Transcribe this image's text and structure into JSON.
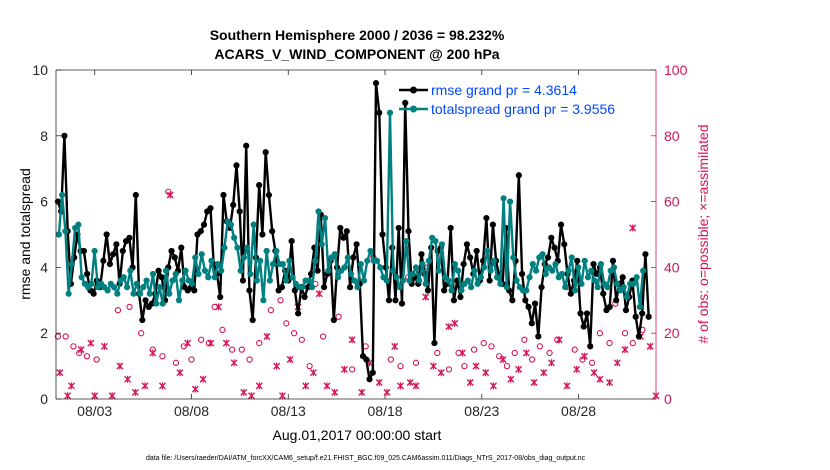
{
  "chart_data": {
    "type": "line",
    "title": "Southern Hemisphere 2000 / 2036 = 98.232%",
    "subtitle": "ACARS_V_WIND_COMPONENT @ 200 hPa",
    "xlabel": "Aug.01,2017 00:00:00 start",
    "ylabel": "rmse and totalspread",
    "y2label": "# of obs: o=possible; ×=assimilated",
    "xlim": [
      1,
      32
    ],
    "ylim": [
      0,
      10
    ],
    "y2lim": [
      0,
      100
    ],
    "x_ticks": [
      3,
      8,
      13,
      18,
      23,
      28
    ],
    "x_tick_labels": [
      "08/03",
      "08/08",
      "08/13",
      "08/18",
      "08/23",
      "08/28"
    ],
    "y_tick_labels": [
      "0",
      "2",
      "4",
      "6",
      "8",
      "10"
    ],
    "y2_tick_labels": [
      "0",
      "20",
      "40",
      "60",
      "80",
      "100"
    ],
    "legend_position": "top-right",
    "footnote": "data file: /Users/raeder/DAI/ATM_forcXX/CAM6_setup/f.e21.FHIST_BGC.f09_025.CAM6assim.011/Diags_NTrS_2017-08/obs_diag_output.nc",
    "colors": {
      "rmse": "#000000",
      "spread": "#008080",
      "obs": "#d6145a"
    },
    "series": [
      {
        "name": "rmse grand pr = 4.3614",
        "y": [
          6.0,
          5.7,
          8.0,
          5.1,
          3.5,
          4.3,
          5.0,
          4.5,
          4.5,
          3.8,
          3.3,
          3.2,
          3.6,
          3.4,
          4.2,
          5.0,
          4.1,
          4.4,
          4.7,
          3.5,
          4.5,
          4.8,
          4.9,
          4.0,
          6.2,
          3.2,
          2.4,
          3.0,
          2.8,
          2.9,
          3.2,
          3.9,
          3.7,
          3.0,
          4.0,
          4.5,
          4.3,
          3.9,
          4.6,
          3.4,
          3.3,
          3.4,
          3.3,
          5.0,
          5.1,
          5.3,
          5.7,
          5.8,
          4.1,
          3.8,
          3.1,
          6.2,
          5.4,
          5.2,
          5.9,
          7.1,
          5.7,
          3.6,
          7.7,
          3.3,
          2.4,
          4.3,
          6.5,
          5.0,
          7.5,
          6.2,
          5.1,
          4.5,
          3.3,
          3.4,
          3.9,
          3.6,
          4.8,
          3.3,
          2.6,
          3.4,
          3.1,
          3.4,
          3.8,
          4.6,
          3.9,
          5.6,
          3.4,
          3.8,
          4.2,
          2.4,
          4.0,
          5.2,
          4.9,
          5.1,
          3.4,
          4.3,
          4.7,
          3.5,
          1.3,
          1.2,
          0.6,
          0.8,
          9.6,
          8.7,
          5.0,
          4.0,
          3.0,
          4.6,
          3.0,
          5.2,
          2.9,
          9.0,
          5.1,
          3.5,
          3.7,
          3.5,
          4.4,
          3.8,
          3.3,
          4.6,
          1.7,
          4.5,
          4.6,
          3.3,
          3.5,
          5.2,
          3.0,
          3.6,
          3.1,
          4.1,
          4.7,
          4.3,
          3.8,
          4.5,
          3.6,
          4.2,
          5.5,
          3.6,
          5.3,
          4.2,
          3.7,
          3.5,
          5.2,
          3.3,
          3.0,
          4.2,
          6.8,
          3.8,
          3.0,
          2.8,
          2.3,
          2.9,
          1.9,
          3.4,
          4.1,
          4.3,
          4.9,
          4.6,
          4.2,
          5.3,
          4.7,
          3.8,
          3.2,
          3.6,
          4.2,
          2.6,
          2.2,
          2.6,
          1.6,
          4.1,
          3.8,
          4.0,
          3.2,
          2.7,
          2.8,
          4.2,
          3.0,
          3.5,
          3.7,
          2.7,
          3.1,
          3.6,
          2.5,
          1.9,
          2.6,
          4.4,
          2.5
        ],
        "x_start": 1.1,
        "x_step": 0.1677
      },
      {
        "name": "totalspread grand pr = 3.9556",
        "y": [
          5.0,
          6.2,
          5.1,
          3.2,
          4.1,
          5.2,
          5.3,
          3.7,
          3.5,
          3.4,
          3.5,
          4.5,
          3.4,
          3.5,
          3.4,
          3.3,
          3.5,
          3.4,
          3.2,
          3.6,
          3.7,
          3.4,
          3.9,
          3.2,
          3.5,
          3.2,
          3.4,
          3.6,
          3.2,
          3.8,
          2.9,
          3.4,
          2.9,
          3.9,
          3.2,
          3.6,
          3.8,
          3.0,
          3.6,
          3.9,
          3.6,
          3.5,
          4.3,
          3.8,
          4.4,
          3.9,
          3.7,
          4.2,
          3.7,
          4.1,
          3.9,
          4.6,
          5.4,
          5.3,
          4.9,
          4.6,
          3.9,
          4.3,
          4.6,
          3.8,
          5.3,
          3.6,
          4.2,
          3.0,
          4.5,
          3.6,
          4.1,
          4.5,
          4.1,
          4.1,
          3.6,
          4.2,
          3.7,
          3.5,
          3.4,
          3.4,
          3.6,
          3.6,
          3.4,
          4.2,
          5.7,
          4.7,
          5.5,
          3.9,
          4.3,
          4.4,
          3.7,
          3.9,
          4.0,
          4.3,
          3.8,
          3.6,
          3.4,
          4.1,
          3.6,
          4.2,
          4.5,
          4.2,
          4.2,
          4.0,
          3.7,
          3.6,
          8.7,
          3.9,
          3.7,
          3.4,
          3.6,
          4.8,
          3.6,
          3.8,
          4.0,
          3.6,
          4.1,
          3.5,
          4.2,
          4.9,
          4.8,
          3.9,
          4.7,
          3.7,
          3.6,
          3.3,
          4.1,
          3.9,
          3.3,
          3.5,
          3.6,
          3.4,
          3.9,
          3.5,
          3.7,
          4.0,
          4.5,
          3.9,
          4.2,
          3.7,
          3.5,
          6.1,
          3.4,
          6.0,
          4.3,
          3.6,
          3.4,
          3.3,
          3.3,
          3.7,
          4.1,
          3.9,
          4.3,
          4.4,
          3.8,
          4.0,
          3.9,
          4.1,
          3.7,
          3.8,
          3.4,
          3.9,
          4.3,
          3.3,
          4.0,
          3.5,
          4.2,
          3.7,
          3.9,
          3.6,
          3.4,
          4.1,
          3.5,
          3.4,
          3.9,
          4.0,
          3.5,
          3.3,
          3.4,
          3.1,
          3.5,
          3.5,
          3.7,
          2.8,
          3.9
        ],
        "x_start": 1.15,
        "x_step": 0.1677
      },
      {
        "name": "possible obs",
        "axis": "right",
        "marker": "o",
        "points": [
          [
            1.1,
            19
          ],
          [
            1.5,
            19
          ],
          [
            1.9,
            16
          ],
          [
            2.2,
            14
          ],
          [
            2.6,
            13
          ],
          [
            3.1,
            12
          ],
          [
            4.2,
            27
          ],
          [
            4.8,
            28
          ],
          [
            5.4,
            20
          ],
          [
            6.0,
            15
          ],
          [
            6.5,
            13
          ],
          [
            6.8,
            63
          ],
          [
            7.2,
            11
          ],
          [
            7.6,
            16
          ],
          [
            8.0,
            12
          ],
          [
            8.5,
            18
          ],
          [
            8.9,
            17
          ],
          [
            9.2,
            28
          ],
          [
            9.6,
            21
          ],
          [
            10.1,
            15
          ],
          [
            10.6,
            15
          ],
          [
            11.0,
            12
          ],
          [
            11.5,
            17
          ],
          [
            12.1,
            27
          ],
          [
            12.6,
            30
          ],
          [
            12.9,
            23
          ],
          [
            13.3,
            20
          ],
          [
            13.7,
            18
          ],
          [
            14.1,
            10
          ],
          [
            14.4,
            35
          ],
          [
            14.8,
            19
          ],
          [
            15.6,
            25
          ],
          [
            16.3,
            9
          ],
          [
            17.0,
            16
          ],
          [
            17.4,
            43
          ],
          [
            18.3,
            12
          ],
          [
            18.8,
            10
          ],
          [
            19.2,
            37
          ],
          [
            19.6,
            11
          ],
          [
            20.2,
            40
          ],
          [
            20.7,
            14
          ],
          [
            21.3,
            9
          ],
          [
            21.8,
            14
          ],
          [
            22.1,
            10
          ],
          [
            22.6,
            15
          ],
          [
            23.1,
            17
          ],
          [
            23.5,
            16
          ],
          [
            23.9,
            13
          ],
          [
            24.3,
            10
          ],
          [
            24.7,
            14
          ],
          [
            25.2,
            18
          ],
          [
            25.6,
            12
          ],
          [
            26.0,
            16
          ],
          [
            26.5,
            14
          ],
          [
            26.9,
            18
          ],
          [
            27.4,
            34
          ],
          [
            27.8,
            15
          ],
          [
            28.2,
            12
          ],
          [
            28.7,
            11
          ],
          [
            29.1,
            20
          ],
          [
            29.6,
            17
          ],
          [
            29.9,
            29
          ],
          [
            30.4,
            20
          ],
          [
            30.8,
            17
          ],
          [
            31.3,
            21
          ]
        ]
      },
      {
        "name": "assimilated obs",
        "axis": "right",
        "marker": "x",
        "points": [
          [
            1.2,
            8
          ],
          [
            1.6,
            1
          ],
          [
            1.8,
            4
          ],
          [
            2.3,
            15
          ],
          [
            2.8,
            17
          ],
          [
            3.0,
            1
          ],
          [
            3.5,
            16
          ],
          [
            3.9,
            1
          ],
          [
            4.3,
            10
          ],
          [
            4.7,
            6
          ],
          [
            5.1,
            2
          ],
          [
            5.6,
            4
          ],
          [
            6.0,
            14
          ],
          [
            6.5,
            4
          ],
          [
            6.9,
            62
          ],
          [
            7.4,
            8
          ],
          [
            7.8,
            17
          ],
          [
            8.2,
            3
          ],
          [
            8.6,
            6
          ],
          [
            9.0,
            17
          ],
          [
            9.4,
            28
          ],
          [
            9.8,
            17
          ],
          [
            10.2,
            11
          ],
          [
            10.7,
            2
          ],
          [
            11.1,
            1
          ],
          [
            11.5,
            4
          ],
          [
            11.9,
            19
          ],
          [
            12.4,
            10
          ],
          [
            12.7,
            1
          ],
          [
            13.1,
            12
          ],
          [
            13.5,
            28
          ],
          [
            13.9,
            4
          ],
          [
            14.3,
            8
          ],
          [
            14.6,
            32
          ],
          [
            15.0,
            4
          ],
          [
            15.4,
            2
          ],
          [
            15.9,
            9
          ],
          [
            16.3,
            18
          ],
          [
            16.8,
            2
          ],
          [
            17.2,
            11
          ],
          [
            17.7,
            5
          ],
          [
            18.1,
            2
          ],
          [
            18.5,
            16
          ],
          [
            18.8,
            4
          ],
          [
            19.3,
            5
          ],
          [
            19.6,
            4
          ],
          [
            20.1,
            31
          ],
          [
            20.5,
            10
          ],
          [
            20.9,
            8
          ],
          [
            21.3,
            22
          ],
          [
            21.6,
            23
          ],
          [
            22.0,
            14
          ],
          [
            22.4,
            5
          ],
          [
            22.7,
            10
          ],
          [
            23.2,
            8
          ],
          [
            23.6,
            4
          ],
          [
            24.1,
            12
          ],
          [
            24.5,
            6
          ],
          [
            24.9,
            9
          ],
          [
            25.3,
            14
          ],
          [
            25.7,
            5
          ],
          [
            26.2,
            8
          ],
          [
            26.6,
            11
          ],
          [
            27.0,
            18
          ],
          [
            27.4,
            4
          ],
          [
            27.9,
            9
          ],
          [
            28.3,
            13
          ],
          [
            28.8,
            8
          ],
          [
            29.1,
            6
          ],
          [
            29.6,
            5
          ],
          [
            30.0,
            11
          ],
          [
            30.4,
            15
          ],
          [
            30.8,
            52
          ],
          [
            31.2,
            19
          ],
          [
            31.7,
            16
          ],
          [
            32.0,
            1
          ]
        ]
      }
    ]
  }
}
